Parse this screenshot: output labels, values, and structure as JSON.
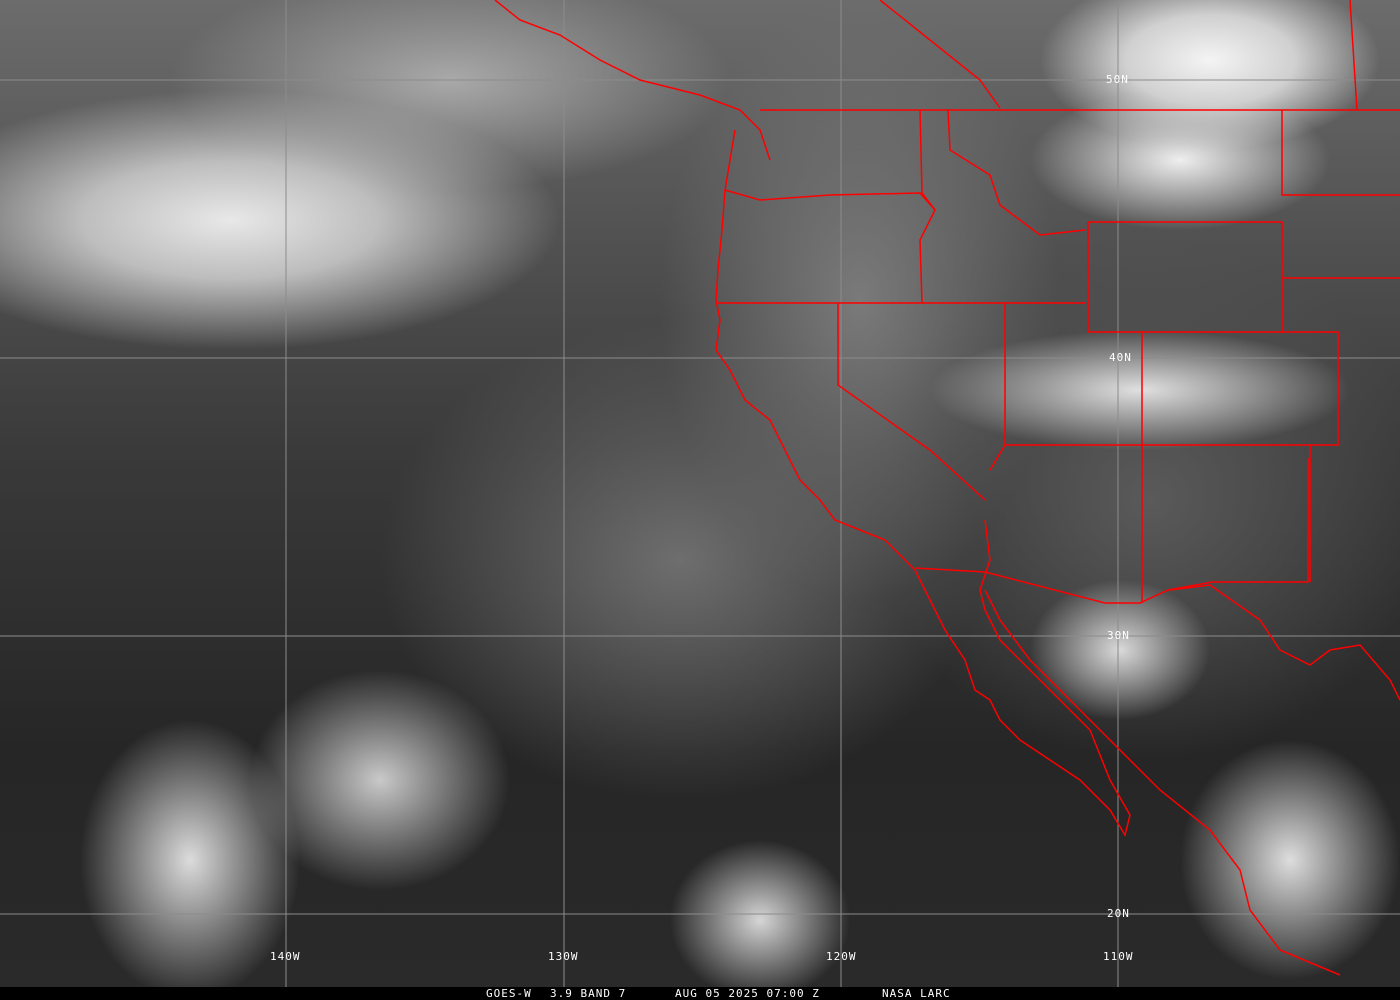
{
  "image": {
    "satellite": "GOES-W",
    "band": "3.9 BAND 7",
    "datetime": "AUG 05 2025 07:00 Z",
    "credit": "NASA LARC",
    "border_color": "#ff0000",
    "grid_color": "#8c8c8c"
  },
  "grid": {
    "latitudes": [
      "50N",
      "40N",
      "30N",
      "20N"
    ],
    "longitudes": [
      "140W",
      "130W",
      "120W",
      "110W"
    ]
  }
}
